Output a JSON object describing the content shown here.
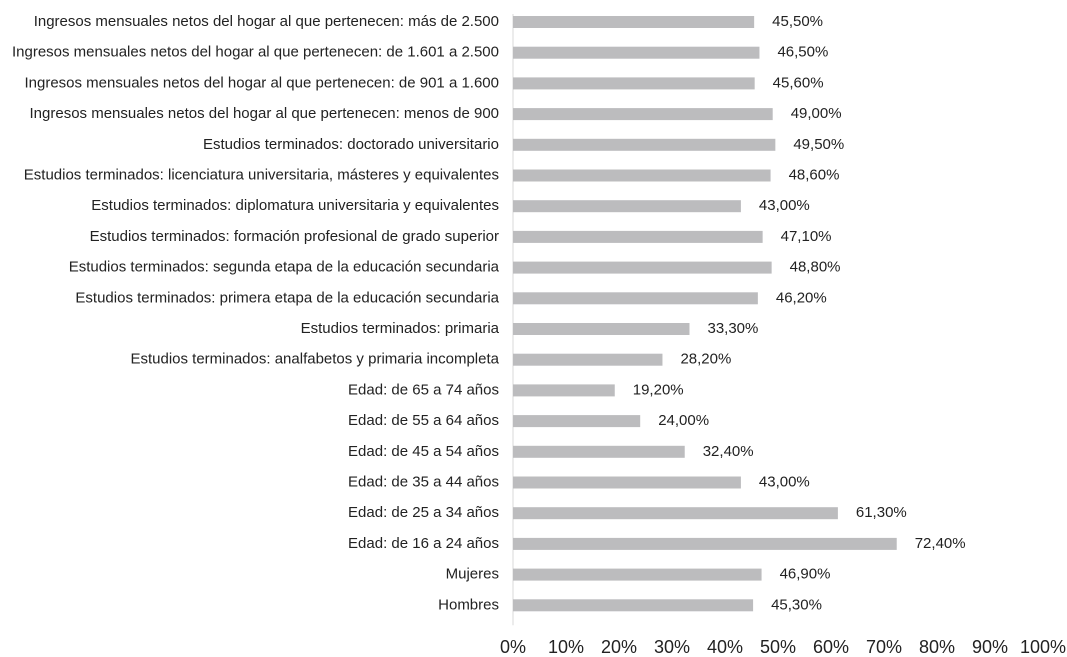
{
  "chart_data": {
    "type": "barh",
    "categories": [
      "Ingresos mensuales netos del hogar al que pertenecen: más de 2.500",
      "Ingresos mensuales netos del hogar al que pertenecen: de 1.601 a 2.500",
      "Ingresos mensuales netos del hogar al que pertenecen: de 901 a 1.600",
      "Ingresos mensuales netos del hogar al que pertenecen: menos de 900",
      "Estudios terminados: doctorado universitario",
      "Estudios terminados: licenciatura universitaria, másteres y equivalentes",
      "Estudios terminados: diplomatura universitaria y equivalentes",
      "Estudios terminados: formación profesional de grado superior",
      "Estudios terminados: segunda etapa de la educación secundaria",
      "Estudios terminados: primera etapa de la educación secundaria",
      "Estudios terminados: primaria",
      "Estudios terminados: analfabetos y primaria incompleta",
      "Edad: de 65 a 74 años",
      "Edad: de 55 a 64 años",
      "Edad: de 45 a 54 años",
      "Edad: de 35 a 44 años",
      "Edad: de 25 a 34 años",
      "Edad: de 16 a 24 años",
      "Mujeres",
      "Hombres"
    ],
    "values": [
      45.5,
      46.5,
      45.6,
      49.0,
      49.5,
      48.6,
      43.0,
      47.1,
      48.8,
      46.2,
      33.3,
      28.2,
      19.2,
      24.0,
      32.4,
      43.0,
      61.3,
      72.4,
      46.9,
      45.3
    ],
    "value_labels": [
      "45,50%",
      "46,50%",
      "45,60%",
      "49,00%",
      "49,50%",
      "48,60%",
      "43,00%",
      "47,10%",
      "48,80%",
      "46,20%",
      "33,30%",
      "28,20%",
      "19,20%",
      "24,00%",
      "32,40%",
      "43,00%",
      "61,30%",
      "72,40%",
      "46,90%",
      "45,30%"
    ],
    "color": "#bcbcbe",
    "xlim": [
      0,
      100
    ],
    "xticks": [
      {
        "value": 0,
        "label": "0%"
      },
      {
        "value": 10,
        "label": "10%"
      },
      {
        "value": 20,
        "label": "20%"
      },
      {
        "value": 30,
        "label": "30%"
      },
      {
        "value": 40,
        "label": "40%"
      },
      {
        "value": 50,
        "label": "50%"
      },
      {
        "value": 60,
        "label": "60%"
      },
      {
        "value": 70,
        "label": "70%"
      },
      {
        "value": 80,
        "label": "80%"
      },
      {
        "value": 90,
        "label": "90%"
      },
      {
        "value": 100,
        "label": "100%"
      }
    ],
    "grid": false
  }
}
